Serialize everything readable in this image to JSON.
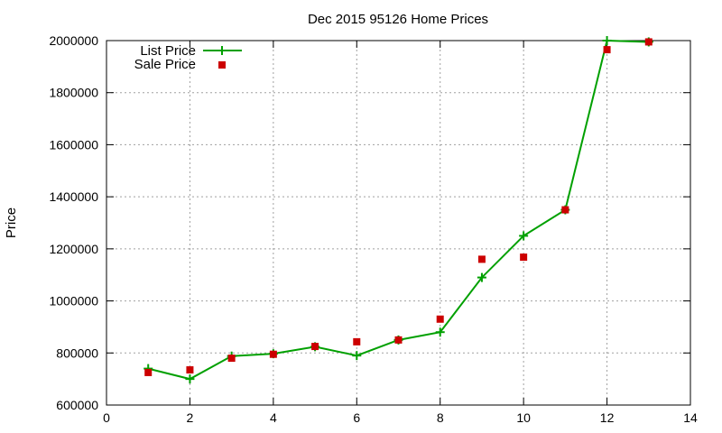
{
  "chart_data": {
    "type": "line",
    "title": "Dec 2015 95126 Home Prices",
    "xlabel": "",
    "ylabel": "Price",
    "xlim": [
      0,
      14
    ],
    "ylim": [
      600000,
      2000000
    ],
    "x_ticks": [
      "0",
      "2",
      "4",
      "6",
      "8",
      "10",
      "12",
      "14"
    ],
    "y_ticks": [
      "600000",
      "800000",
      "1000000",
      "1200000",
      "1400000",
      "1600000",
      "1800000",
      "2000000"
    ],
    "grid": true,
    "legend_position": "top-left",
    "series": [
      {
        "name": "List Price",
        "kind": "line-with-plus-markers",
        "color": "#00a000",
        "x": [
          1,
          2,
          3,
          4,
          5,
          6,
          7,
          8,
          9,
          10,
          11,
          12,
          13
        ],
        "y": [
          740000,
          700000,
          788000,
          797000,
          824000,
          790000,
          850000,
          880000,
          1090000,
          1250000,
          1350000,
          2000000,
          1995000
        ]
      },
      {
        "name": "Sale Price",
        "kind": "square-points",
        "color": "#cc0000",
        "x": [
          1,
          2,
          3,
          4,
          5,
          6,
          7,
          8,
          9,
          10,
          11,
          12,
          13
        ],
        "y": [
          725000,
          735000,
          780000,
          795000,
          825000,
          843000,
          850000,
          930000,
          1160000,
          1168000,
          1350000,
          1965000,
          1995000
        ]
      }
    ]
  }
}
